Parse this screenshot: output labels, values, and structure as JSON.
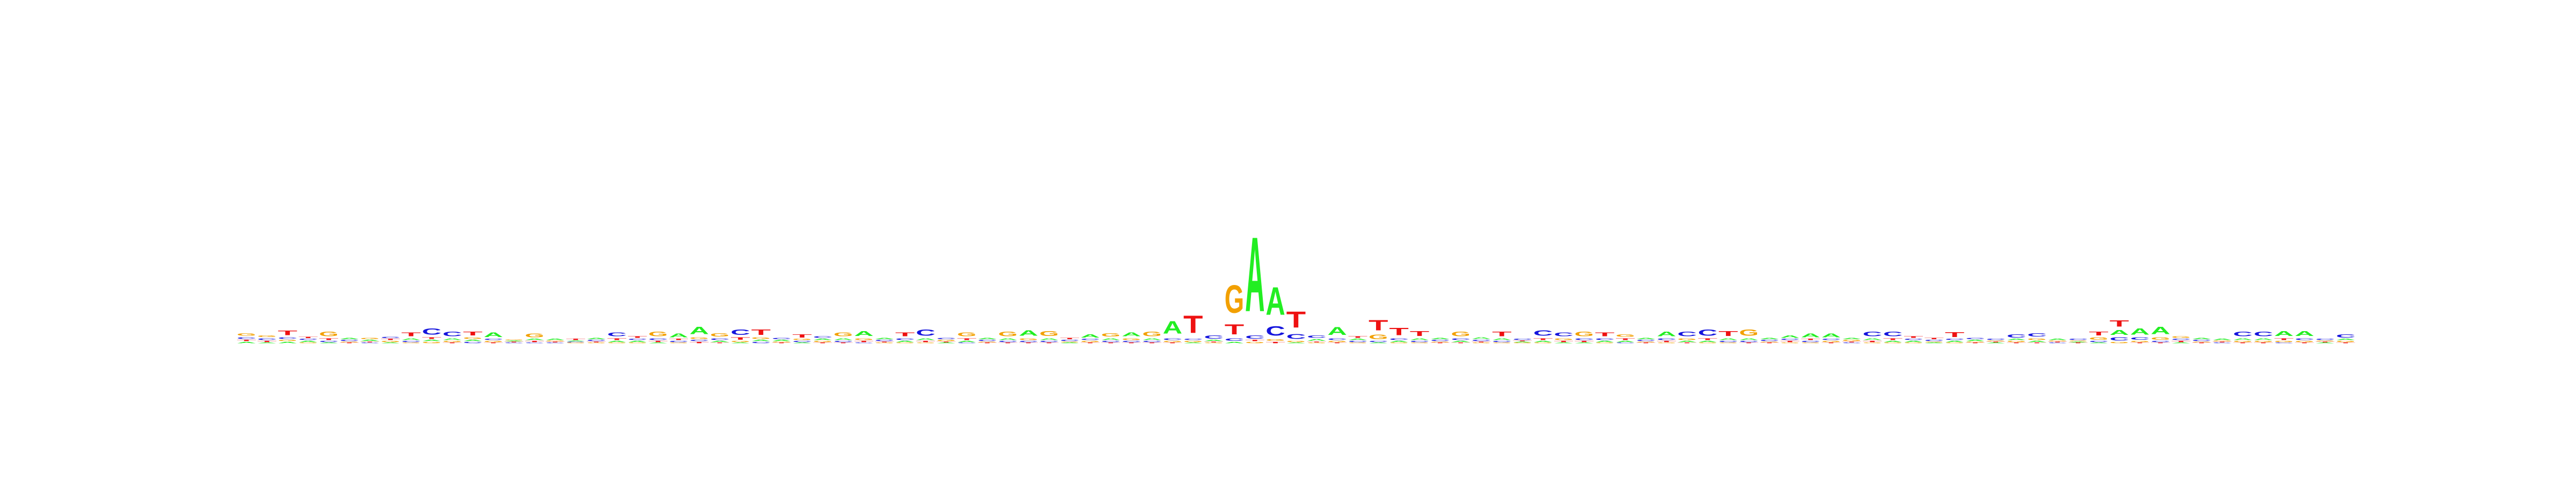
{
  "chart_data": {
    "type": "sequence-logo",
    "title": "",
    "xlabel": "",
    "ylabel": "",
    "alphabet": [
      "A",
      "C",
      "G",
      "T"
    ],
    "colors": {
      "A": "#22ee22",
      "C": "#1515dd",
      "G": "#f2a000",
      "T": "#ee1111"
    },
    "ylim": [
      0,
      2
    ],
    "positions": [
      {
        "G": 0.04,
        "C": 0.03,
        "A": 0.02,
        "T": 0.02
      },
      {
        "C": 0.03,
        "G": 0.03,
        "T": 0.02,
        "A": 0.01
      },
      {
        "T": 0.07,
        "C": 0.03,
        "A": 0.02,
        "G": 0.02
      },
      {
        "A": 0.02,
        "C": 0.02,
        "T": 0.02,
        "G": 0.01
      },
      {
        "G": 0.07,
        "T": 0.03,
        "C": 0.02,
        "A": 0.01
      },
      {
        "C": 0.02,
        "A": 0.02,
        "T": 0.01,
        "G": 0.01
      },
      {
        "A": 0.02,
        "G": 0.02,
        "C": 0.01,
        "T": 0.01
      },
      {
        "G": 0.02,
        "T": 0.02,
        "C": 0.02,
        "A": 0.01
      },
      {
        "T": 0.06,
        "A": 0.03,
        "C": 0.02,
        "G": 0.01
      },
      {
        "C": 0.1,
        "T": 0.03,
        "G": 0.02,
        "A": 0.02
      },
      {
        "C": 0.07,
        "A": 0.03,
        "G": 0.02,
        "T": 0.01
      },
      {
        "T": 0.06,
        "G": 0.03,
        "C": 0.02,
        "A": 0.02
      },
      {
        "A": 0.07,
        "G": 0.02,
        "C": 0.02,
        "T": 0.01
      },
      {
        "C": 0.01,
        "T": 0.01,
        "A": 0.01,
        "G": 0.01
      },
      {
        "G": 0.06,
        "T": 0.02,
        "A": 0.02,
        "C": 0.01
      },
      {
        "A": 0.02,
        "C": 0.01,
        "T": 0.01,
        "G": 0.01
      },
      {
        "T": 0.02,
        "G": 0.01,
        "C": 0.01,
        "A": 0.01
      },
      {
        "C": 0.02,
        "A": 0.02,
        "G": 0.01,
        "T": 0.01
      },
      {
        "C": 0.06,
        "T": 0.03,
        "A": 0.02,
        "G": 0.01
      },
      {
        "T": 0.03,
        "A": 0.02,
        "C": 0.02,
        "G": 0.01
      },
      {
        "G": 0.07,
        "C": 0.03,
        "T": 0.02,
        "A": 0.01
      },
      {
        "A": 0.06,
        "C": 0.02,
        "T": 0.02,
        "G": 0.01
      },
      {
        "A": 0.12,
        "G": 0.03,
        "T": 0.02,
        "C": 0.02
      },
      {
        "G": 0.05,
        "C": 0.03,
        "A": 0.02,
        "T": 0.01
      },
      {
        "C": 0.09,
        "T": 0.04,
        "G": 0.02,
        "A": 0.01
      },
      {
        "T": 0.09,
        "G": 0.03,
        "C": 0.02,
        "A": 0.02
      },
      {
        "A": 0.02,
        "C": 0.02,
        "T": 0.01,
        "G": 0.01
      },
      {
        "T": 0.05,
        "C": 0.02,
        "G": 0.02,
        "A": 0.01
      },
      {
        "C": 0.03,
        "G": 0.02,
        "A": 0.02,
        "T": 0.01
      },
      {
        "G": 0.06,
        "A": 0.03,
        "C": 0.02,
        "T": 0.01
      },
      {
        "A": 0.08,
        "G": 0.03,
        "T": 0.02,
        "C": 0.01
      },
      {
        "C": 0.02,
        "A": 0.02,
        "G": 0.01,
        "T": 0.01
      },
      {
        "T": 0.06,
        "C": 0.03,
        "A": 0.02,
        "G": 0.01
      },
      {
        "C": 0.1,
        "A": 0.03,
        "T": 0.02,
        "G": 0.01
      },
      {
        "G": 0.02,
        "C": 0.02,
        "A": 0.01,
        "T": 0.01
      },
      {
        "G": 0.06,
        "T": 0.03,
        "A": 0.02,
        "C": 0.01
      },
      {
        "C": 0.02,
        "A": 0.02,
        "T": 0.01,
        "G": 0.01
      },
      {
        "G": 0.07,
        "A": 0.03,
        "C": 0.02,
        "T": 0.01
      },
      {
        "A": 0.09,
        "G": 0.03,
        "C": 0.02,
        "T": 0.01
      },
      {
        "G": 0.08,
        "A": 0.03,
        "C": 0.02,
        "T": 0.01
      },
      {
        "C": 0.02,
        "T": 0.02,
        "A": 0.01,
        "G": 0.01
      },
      {
        "A": 0.05,
        "G": 0.02,
        "C": 0.02,
        "T": 0.01
      },
      {
        "G": 0.05,
        "A": 0.03,
        "C": 0.02,
        "T": 0.01
      },
      {
        "A": 0.06,
        "G": 0.03,
        "C": 0.02,
        "T": 0.01
      },
      {
        "G": 0.07,
        "A": 0.03,
        "C": 0.02,
        "T": 0.01
      },
      {
        "A": 0.2,
        "C": 0.03,
        "G": 0.02,
        "T": 0.01
      },
      {
        "T": 0.28,
        "G": 0.02,
        "C": 0.02,
        "A": 0.01
      },
      {
        "C": 0.05,
        "A": 0.02,
        "G": 0.01,
        "T": 0.01
      },
      {
        "G": 0.45,
        "T": 0.16,
        "C": 0.04,
        "A": 0.02
      },
      {
        "A": 1.2,
        "C": 0.05,
        "G": 0.02,
        "T": 0.02
      },
      {
        "A": 0.45,
        "C": 0.15,
        "G": 0.03,
        "T": 0.02
      },
      {
        "T": 0.26,
        "C": 0.08,
        "G": 0.02,
        "A": 0.01
      },
      {
        "C": 0.04,
        "A": 0.03,
        "G": 0.01,
        "T": 0.01
      },
      {
        "A": 0.13,
        "C": 0.03,
        "G": 0.02,
        "T": 0.01
      },
      {
        "T": 0.03,
        "C": 0.02,
        "A": 0.02,
        "G": 0.01
      },
      {
        "T": 0.17,
        "G": 0.07,
        "C": 0.02,
        "A": 0.01
      },
      {
        "T": 0.12,
        "C": 0.03,
        "A": 0.02,
        "G": 0.01
      },
      {
        "T": 0.08,
        "A": 0.03,
        "C": 0.02,
        "G": 0.01
      },
      {
        "C": 0.02,
        "A": 0.02,
        "T": 0.01,
        "G": 0.01
      },
      {
        "G": 0.07,
        "C": 0.03,
        "A": 0.02,
        "T": 0.01
      },
      {
        "A": 0.03,
        "C": 0.02,
        "G": 0.01,
        "T": 0.01
      },
      {
        "T": 0.07,
        "A": 0.03,
        "C": 0.02,
        "G": 0.01
      },
      {
        "C": 0.02,
        "G": 0.01,
        "A": 0.01,
        "T": 0.01
      },
      {
        "C": 0.09,
        "T": 0.03,
        "A": 0.02,
        "G": 0.01
      },
      {
        "C": 0.06,
        "G": 0.03,
        "T": 0.02,
        "A": 0.01
      },
      {
        "G": 0.07,
        "C": 0.03,
        "T": 0.02,
        "A": 0.01
      },
      {
        "T": 0.06,
        "C": 0.03,
        "A": 0.02,
        "G": 0.01
      },
      {
        "G": 0.04,
        "T": 0.03,
        "A": 0.02,
        "C": 0.01
      },
      {
        "C": 0.02,
        "A": 0.02,
        "T": 0.01,
        "G": 0.01
      },
      {
        "A": 0.07,
        "C": 0.03,
        "T": 0.02,
        "G": 0.01
      },
      {
        "C": 0.07,
        "G": 0.03,
        "A": 0.02,
        "T": 0.01
      },
      {
        "C": 0.1,
        "T": 0.03,
        "A": 0.02,
        "G": 0.01
      },
      {
        "T": 0.08,
        "A": 0.03,
        "C": 0.02,
        "G": 0.01
      },
      {
        "G": 0.1,
        "A": 0.03,
        "C": 0.02,
        "T": 0.01
      },
      {
        "C": 0.02,
        "A": 0.02,
        "T": 0.01,
        "G": 0.01
      },
      {
        "A": 0.04,
        "T": 0.02,
        "C": 0.02,
        "G": 0.01
      },
      {
        "A": 0.06,
        "C": 0.02,
        "T": 0.02,
        "G": 0.01
      },
      {
        "A": 0.06,
        "G": 0.02,
        "C": 0.02,
        "T": 0.01
      },
      {
        "G": 0.02,
        "A": 0.02,
        "C": 0.01,
        "T": 0.01
      },
      {
        "C": 0.07,
        "A": 0.03,
        "T": 0.02,
        "G": 0.01
      },
      {
        "C": 0.07,
        "T": 0.03,
        "A": 0.02,
        "G": 0.01
      },
      {
        "T": 0.03,
        "A": 0.02,
        "C": 0.02,
        "G": 0.01
      },
      {
        "C": 0.02,
        "T": 0.02,
        "A": 0.01,
        "G": 0.01
      },
      {
        "T": 0.08,
        "A": 0.02,
        "C": 0.02,
        "G": 0.01
      },
      {
        "A": 0.02,
        "C": 0.02,
        "T": 0.01,
        "G": 0.01
      },
      {
        "C": 0.02,
        "A": 0.01,
        "T": 0.01,
        "G": 0.01
      },
      {
        "C": 0.05,
        "G": 0.02,
        "A": 0.02,
        "T": 0.01
      },
      {
        "C": 0.05,
        "G": 0.03,
        "A": 0.02,
        "T": 0.01
      },
      {
        "A": 0.02,
        "C": 0.01,
        "T": 0.01,
        "G": 0.01
      },
      {
        "C": 0.02,
        "T": 0.01,
        "A": 0.01,
        "G": 0.01
      },
      {
        "T": 0.06,
        "G": 0.04,
        "C": 0.02,
        "A": 0.01
      },
      {
        "T": 0.1,
        "A": 0.08,
        "C": 0.05,
        "G": 0.02
      },
      {
        "A": 0.1,
        "C": 0.04,
        "G": 0.02,
        "T": 0.01
      },
      {
        "A": 0.12,
        "G": 0.04,
        "C": 0.02,
        "T": 0.01
      },
      {
        "G": 0.03,
        "T": 0.02,
        "C": 0.02,
        "A": 0.01
      },
      {
        "C": 0.02,
        "A": 0.02,
        "T": 0.01,
        "G": 0.01
      },
      {
        "A": 0.02,
        "C": 0.01,
        "T": 0.01,
        "G": 0.01
      },
      {
        "C": 0.07,
        "A": 0.03,
        "G": 0.02,
        "T": 0.01
      },
      {
        "C": 0.07,
        "A": 0.03,
        "G": 0.02,
        "T": 0.01
      },
      {
        "A": 0.08,
        "T": 0.03,
        "G": 0.02,
        "C": 0.01
      },
      {
        "A": 0.08,
        "C": 0.03,
        "G": 0.02,
        "T": 0.01
      },
      {
        "C": 0.02,
        "A": 0.01,
        "T": 0.01,
        "G": 0.01
      },
      {
        "C": 0.05,
        "G": 0.02,
        "A": 0.02,
        "T": 0.01
      }
    ]
  }
}
